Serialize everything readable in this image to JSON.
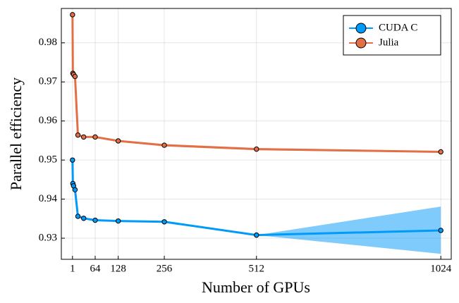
{
  "chart_data": {
    "type": "line",
    "x_label": "Number of GPUs",
    "y_label": "Parallel efficiency",
    "x": [
      1,
      2,
      4,
      8,
      16,
      32,
      64,
      128,
      256,
      512,
      1024
    ],
    "series": [
      {
        "name": "CUDA C",
        "color": "#009af9",
        "values": [
          0.95,
          0.944,
          0.9434,
          0.9424,
          0.9356,
          0.9351,
          0.9346,
          0.9344,
          0.9342,
          0.9308,
          0.932
        ],
        "lower": [
          0.95,
          0.944,
          0.9434,
          0.9424,
          0.9356,
          0.9351,
          0.9346,
          0.9344,
          0.9342,
          0.9308,
          0.926
        ],
        "upper": [
          0.95,
          0.944,
          0.9434,
          0.9424,
          0.9356,
          0.9351,
          0.9346,
          0.9344,
          0.9342,
          0.9308,
          0.9381
        ]
      },
      {
        "name": "Julia",
        "color": "#e26f46",
        "values": [
          0.9872,
          0.9722,
          0.9719,
          0.9714,
          0.9564,
          0.9559,
          0.9559,
          0.9549,
          0.9538,
          0.9528,
          0.9521
        ],
        "lower": [
          0.9872,
          0.9722,
          0.9719,
          0.9714,
          0.9564,
          0.9559,
          0.9558,
          0.9547,
          0.9535,
          0.9525,
          0.9519
        ],
        "upper": [
          0.9872,
          0.9722,
          0.9719,
          0.9714,
          0.9564,
          0.9559,
          0.956,
          0.9551,
          0.9541,
          0.9531,
          0.9523
        ]
      }
    ],
    "xlim": [
      -30,
      1053
    ],
    "xticks": [
      1,
      64,
      128,
      256,
      512,
      1024
    ],
    "ylim": [
      0.9246,
      0.9888
    ],
    "yticks": [
      0.93,
      0.94,
      0.95,
      0.96,
      0.97,
      0.98
    ],
    "grid": true,
    "legend": "top-right"
  }
}
